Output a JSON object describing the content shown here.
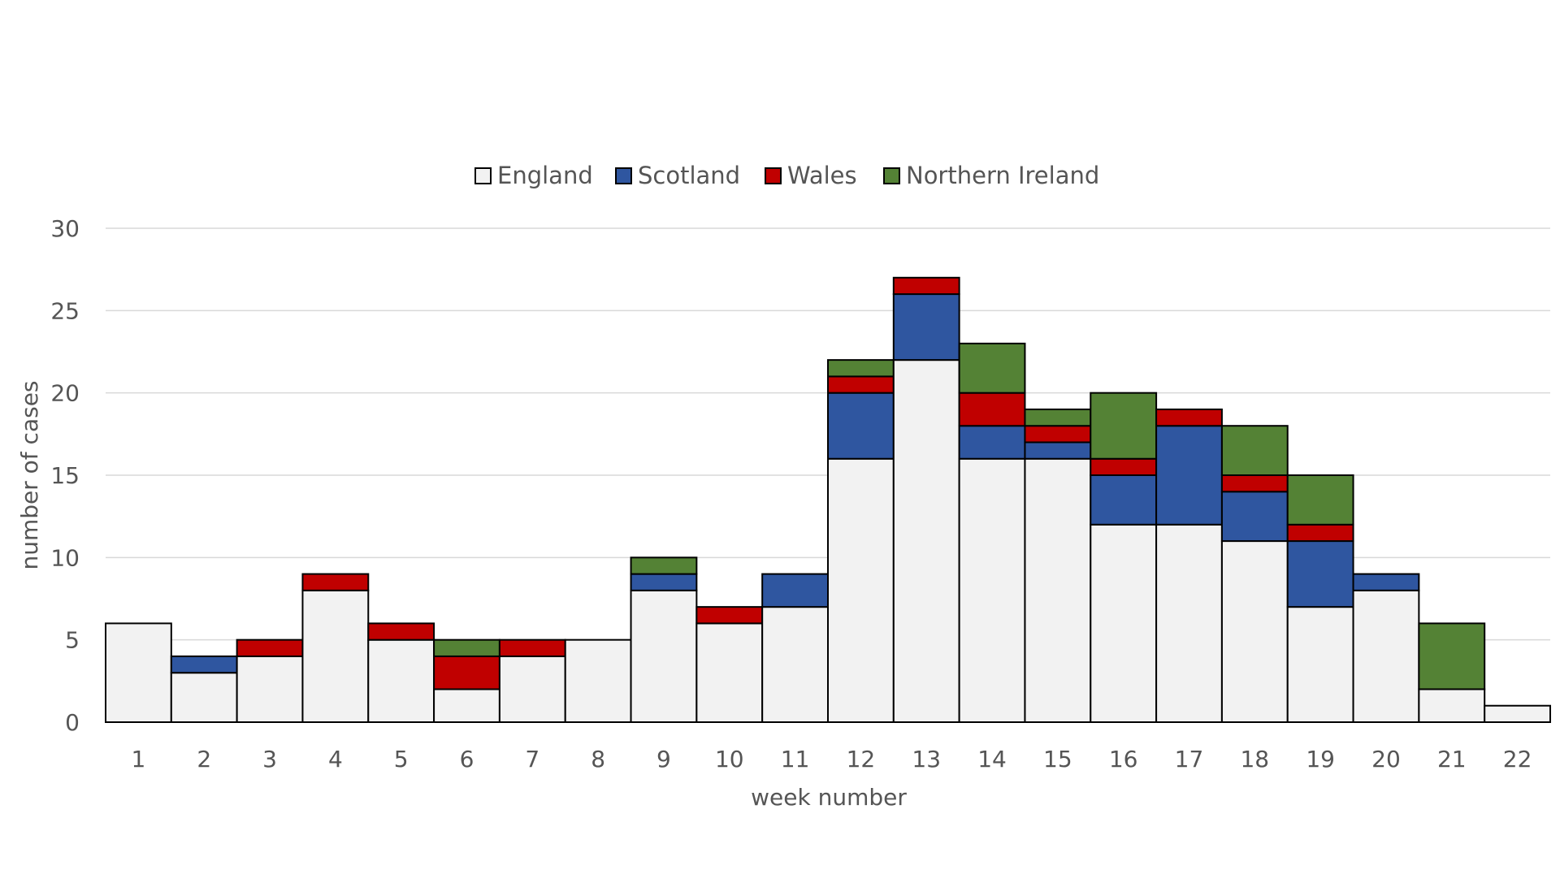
{
  "chart_data": {
    "type": "bar",
    "stacked": true,
    "title": "",
    "xlabel": "week number",
    "ylabel": "number of cases",
    "ylim": [
      0,
      30
    ],
    "yticks": [
      0,
      5,
      10,
      15,
      20,
      25,
      30
    ],
    "grid": true,
    "legend_position": "top-center",
    "categories": [
      "1",
      "2",
      "3",
      "4",
      "5",
      "6",
      "7",
      "8",
      "9",
      "10",
      "11",
      "12",
      "13",
      "14",
      "15",
      "16",
      "17",
      "18",
      "19",
      "20",
      "21",
      "22"
    ],
    "series": [
      {
        "name": "England",
        "color": "#f2f2f2",
        "values": [
          6,
          3,
          4,
          8,
          5,
          2,
          4,
          5,
          8,
          6,
          7,
          16,
          22,
          16,
          16,
          12,
          12,
          11,
          7,
          8,
          2,
          1
        ]
      },
      {
        "name": "Scotland",
        "color": "#2f56a0",
        "values": [
          0,
          1,
          0,
          0,
          0,
          0,
          0,
          0,
          1,
          0,
          2,
          4,
          4,
          2,
          1,
          3,
          6,
          3,
          4,
          1,
          0,
          0
        ]
      },
      {
        "name": "Wales",
        "color": "#c00000",
        "values": [
          0,
          0,
          1,
          1,
          1,
          2,
          1,
          0,
          0,
          1,
          0,
          1,
          1,
          2,
          1,
          1,
          1,
          1,
          1,
          0,
          0,
          0
        ]
      },
      {
        "name": "Northern Ireland",
        "color": "#548235",
        "values": [
          0,
          0,
          0,
          0,
          0,
          1,
          0,
          0,
          1,
          0,
          0,
          1,
          0,
          3,
          1,
          4,
          0,
          3,
          3,
          0,
          4,
          0
        ]
      }
    ]
  }
}
